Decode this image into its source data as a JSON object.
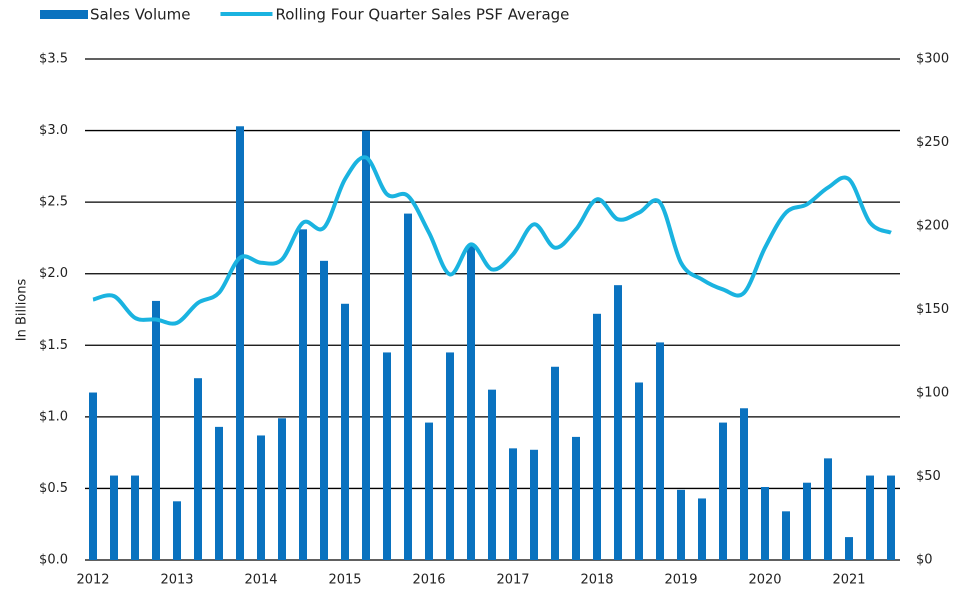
{
  "chart_data": {
    "type": "bar_line",
    "y_axis_label": "In Billions",
    "categories": [
      "2012",
      null,
      null,
      null,
      "2013",
      null,
      null,
      null,
      "2014",
      null,
      null,
      null,
      "2015",
      null,
      null,
      null,
      "2016",
      null,
      null,
      null,
      "2017",
      null,
      null,
      null,
      "2018",
      null,
      null,
      null,
      "2019",
      null,
      null,
      null,
      "2020",
      null,
      null,
      null,
      "2021",
      null,
      null
    ],
    "series": [
      {
        "name": "Sales Volume",
        "type": "bar",
        "color": "#0a72bf",
        "values": [
          1.17,
          0.59,
          0.59,
          1.81,
          0.41,
          1.27,
          0.93,
          3.03,
          0.87,
          0.99,
          2.31,
          2.09,
          1.79,
          3.0,
          1.45,
          2.42,
          0.96,
          1.45,
          2.2,
          1.19,
          0.78,
          0.77,
          1.35,
          0.86,
          1.72,
          1.92,
          1.24,
          1.52,
          0.49,
          0.43,
          0.96,
          1.06,
          0.51,
          0.34,
          0.54,
          0.71,
          0.16,
          0.59,
          0.59
        ]
      },
      {
        "name": "Rolling Four Quarter Sales PSF Average",
        "type": "line",
        "axis": "y2",
        "color": "#1ab3e0",
        "values": [
          156,
          158,
          145,
          144,
          142,
          154,
          160,
          181,
          178,
          180,
          202,
          199,
          228,
          241,
          219,
          218,
          196,
          171,
          189,
          174,
          183,
          201,
          187,
          198,
          216,
          204,
          208,
          214,
          178,
          168,
          162,
          160,
          187,
          208,
          213,
          223,
          228,
          202,
          196
        ]
      }
    ],
    "ylim": [
      0,
      3.5
    ],
    "yticks": [
      {
        "value": 0,
        "label": "$0.0"
      },
      {
        "value": 0.5,
        "label": "$0.5"
      },
      {
        "value": 1,
        "label": "$1.0"
      },
      {
        "value": 1.5,
        "label": "$1.5"
      },
      {
        "value": 2,
        "label": "$2.0"
      },
      {
        "value": 2.5,
        "label": "$2.5"
      },
      {
        "value": 3,
        "label": "$3.0"
      },
      {
        "value": 3.5,
        "label": "$3.5"
      }
    ],
    "y2lim": [
      0,
      300
    ],
    "y2ticks": [
      {
        "value": 0,
        "label": "$0"
      },
      {
        "value": 50,
        "label": "$50"
      },
      {
        "value": 100,
        "label": "$100"
      },
      {
        "value": 150,
        "label": "$150"
      },
      {
        "value": 200,
        "label": "$200"
      },
      {
        "value": 250,
        "label": "$250"
      },
      {
        "value": 300,
        "label": "$300"
      }
    ],
    "grid": true,
    "legend": "top-left"
  }
}
